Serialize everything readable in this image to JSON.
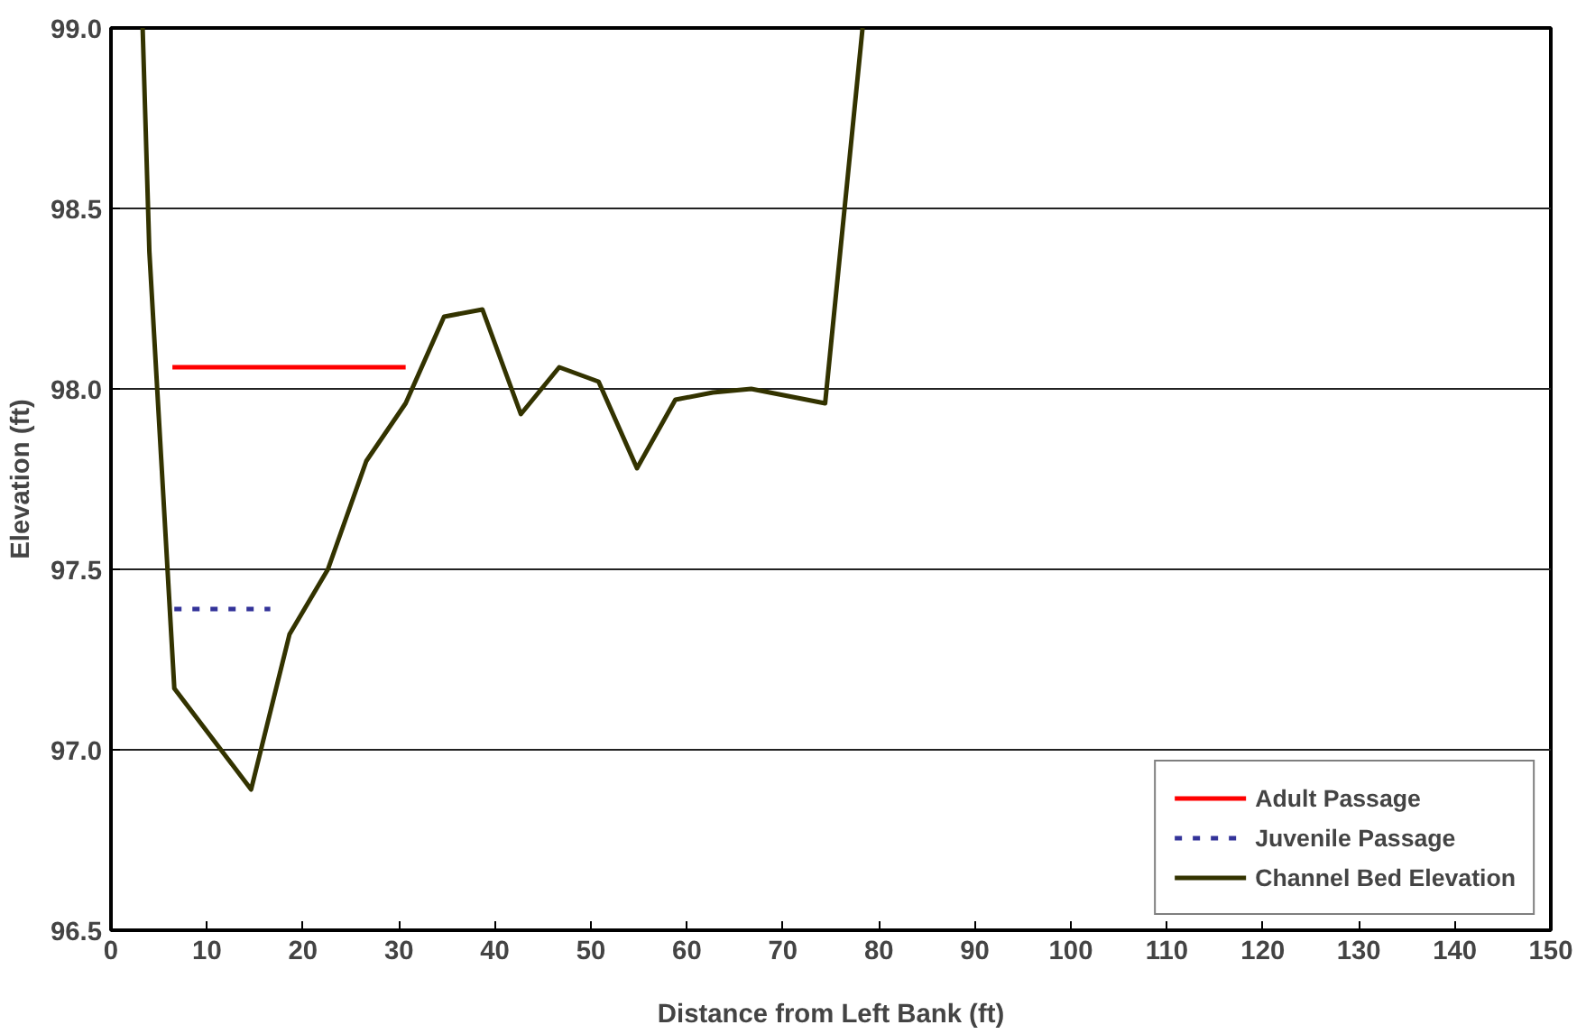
{
  "chart_data": {
    "type": "line",
    "xlabel": "Distance from Left Bank (ft)",
    "ylabel": "Elevation (ft)",
    "xlim": [
      0,
      150
    ],
    "xticks": [
      0,
      10,
      20,
      30,
      40,
      50,
      60,
      70,
      80,
      90,
      100,
      110,
      120,
      130,
      140,
      150
    ],
    "ylim": [
      96.5,
      99.0
    ],
    "yticks": [
      96.5,
      {
        "value": 97,
        "label": "97.0"
      },
      97.5,
      {
        "value": 98,
        "label": "98.0"
      },
      98.5,
      {
        "value": 99,
        "label": "99.0"
      }
    ],
    "grid": "y",
    "legend": "bottom right",
    "marker": "none",
    "series": [
      {
        "name": "Adult Passage",
        "color": "#ff0000",
        "line_style": "solid",
        "x": [
          6.4,
          30.7
        ],
        "values": [
          98.06,
          98.06
        ]
      },
      {
        "name": "Juvenile Passage",
        "color": "#333399",
        "line_style": "dashed",
        "x": [
          6.6,
          16.6
        ],
        "values": [
          97.39,
          97.39
        ]
      },
      {
        "name": "Channel Bed Elevation",
        "color": "#333300",
        "line_style": "solid",
        "x": [
          3.3,
          4.0,
          6.6,
          14.6,
          18.6,
          22.6,
          26.6,
          30.7,
          34.7,
          38.7,
          42.7,
          46.7,
          50.8,
          54.8,
          58.8,
          62.7,
          66.7,
          74.4,
          78.3
        ],
        "values": [
          99.0,
          98.38,
          97.17,
          96.89,
          97.32,
          97.5,
          97.8,
          97.96,
          98.2,
          98.22,
          97.93,
          98.06,
          98.02,
          97.78,
          97.97,
          97.99,
          98.0,
          97.96,
          99.0
        ]
      }
    ]
  }
}
